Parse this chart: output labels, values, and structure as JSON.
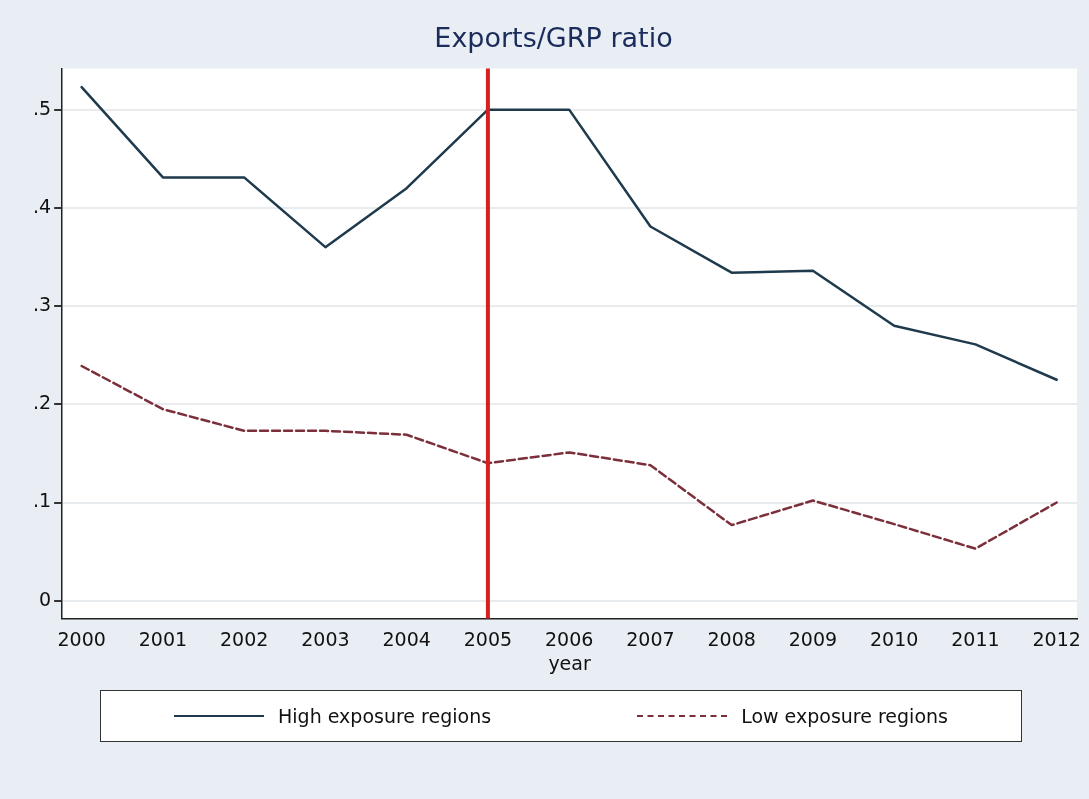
{
  "chart_data": {
    "type": "line",
    "title": "Exports/GRP ratio",
    "xlabel": "year",
    "x": [
      2000,
      2001,
      2002,
      2003,
      2004,
      2005,
      2006,
      2007,
      2008,
      2009,
      2010,
      2011,
      2012
    ],
    "xlim": [
      1999.76,
      2012.25
    ],
    "xticks": [
      2000,
      2001,
      2002,
      2003,
      2004,
      2005,
      2006,
      2007,
      2008,
      2009,
      2010,
      2011,
      2012
    ],
    "ylim": [
      -0.018,
      0.542
    ],
    "yticks": [
      {
        "value": 0,
        "label": "0"
      },
      {
        "value": 0.1,
        "label": ".1"
      },
      {
        "value": 0.2,
        "label": ".2"
      },
      {
        "value": 0.3,
        "label": ".3"
      },
      {
        "value": 0.4,
        "label": ".4"
      },
      {
        "value": 0.5,
        "label": ".5"
      }
    ],
    "grid": "y",
    "legend": "bottom",
    "marker": "none",
    "ref_lines": [
      {
        "axis": "x",
        "value": 2005,
        "color": "#d61f1f"
      }
    ],
    "series": [
      {
        "name": "High exposure regions",
        "color": "#1e3a4c",
        "line_style": "solid",
        "values": [
          0.523,
          0.431,
          0.431,
          0.36,
          0.42,
          0.5,
          0.5,
          0.381,
          0.334,
          0.336,
          0.28,
          0.261,
          0.225
        ]
      },
      {
        "name": "Low exposure regions",
        "color": "#7b2f3a",
        "line_style": "dashed",
        "values": [
          0.239,
          0.195,
          0.173,
          0.173,
          0.169,
          0.14,
          0.151,
          0.138,
          0.077,
          0.102,
          0.078,
          0.053,
          0.1
        ]
      }
    ]
  }
}
